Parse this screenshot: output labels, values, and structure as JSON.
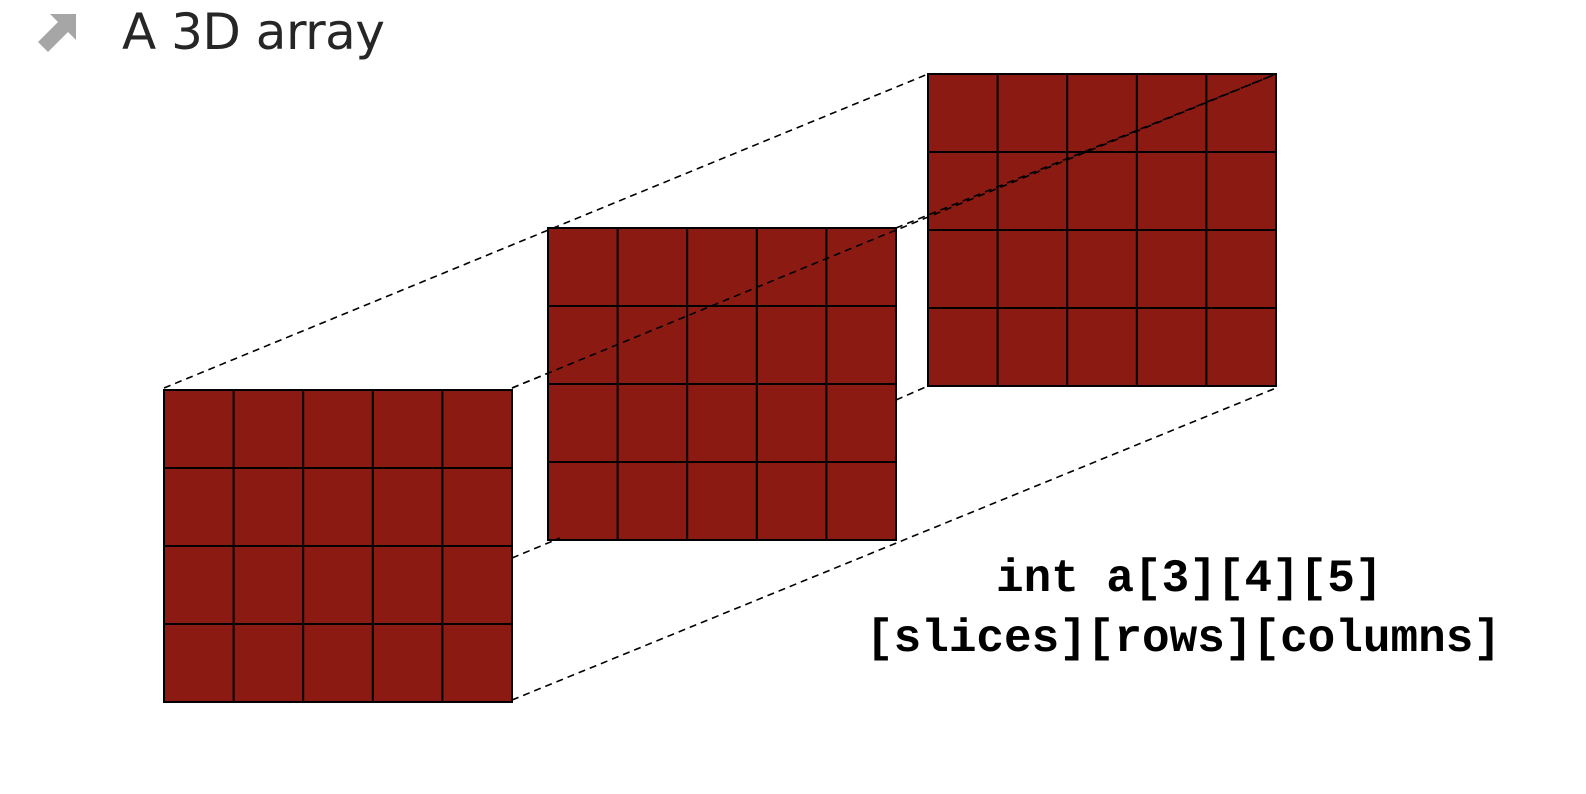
{
  "title": "A 3D array",
  "bullet_icon": "arrow-up-right-icon",
  "array": {
    "slices": 3,
    "rows": 4,
    "columns": 5,
    "cell_color": "#8b1a12",
    "grid_line_color": "#000000"
  },
  "code": {
    "declaration": "int a[3][4][5]",
    "dimension_labels": "[slices][rows][columns]"
  },
  "colors": {
    "bullet": "#a6a6a6",
    "title": "#262626"
  }
}
